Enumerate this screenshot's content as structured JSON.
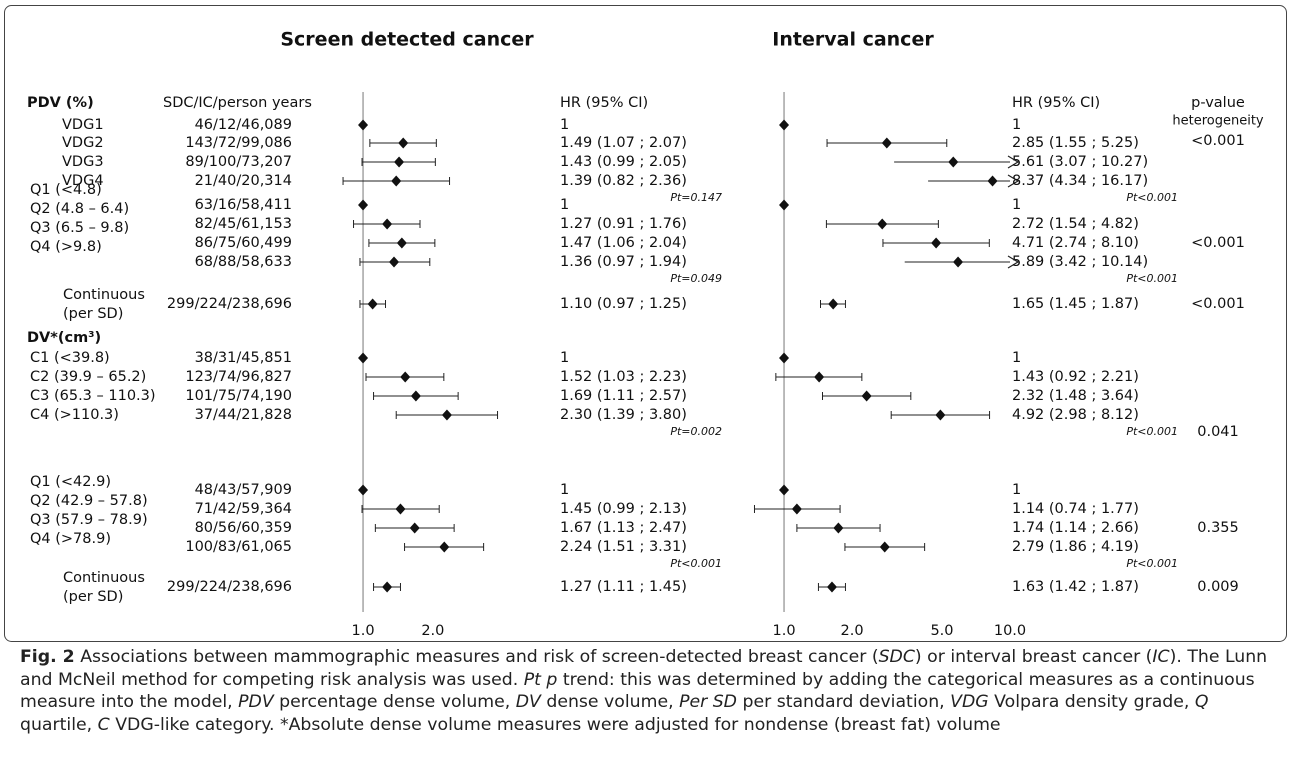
{
  "chart_data": {
    "type": "forest",
    "headers": {
      "counts": "SDC/IC/person years",
      "p": "p-value",
      "p_sub": "heterogeneity"
    },
    "panels": [
      {
        "title": "Screen detected cancer",
        "effect_header": "HR (95% CI)",
        "scale": "log",
        "xlim": [
          0.7,
          4
        ],
        "xticks": [
          {
            "value": 1,
            "label": "1.0"
          },
          {
            "value": 2,
            "label": "2.0"
          }
        ]
      },
      {
        "title": "Interval cancer",
        "effect_header": "HR (95% CI)",
        "scale": "log",
        "xlim": [
          0.6,
          10
        ],
        "xticks": [
          {
            "value": 1,
            "label": "1.0"
          },
          {
            "value": 2,
            "label": "2.0"
          },
          {
            "value": 5,
            "label": "5.0"
          },
          {
            "value": 10,
            "label": "10.0"
          }
        ]
      }
    ],
    "sections": [
      {
        "title": "PDV (%)",
        "groups": [
          {
            "rows": [
              {
                "label": "VDG1",
                "counts": "46/12/46,089",
                "estimates": [
                  {
                    "hr": 1
                  },
                  {
                    "hr": 1
                  }
                ]
              },
              {
                "label": "VDG2",
                "counts": "143/72/99,086",
                "estimates": [
                  {
                    "hr": 1.49,
                    "lower": 1.07,
                    "upper": 2.07,
                    "label": "1.49 (1.07 ; 2.07)"
                  },
                  {
                    "hr": 2.85,
                    "lower": 1.55,
                    "upper": 5.25,
                    "label": "2.85 (1.55 ; 5.25)"
                  }
                ]
              },
              {
                "label": "VDG3",
                "counts": "89/100/73,207",
                "estimates": [
                  {
                    "hr": 1.43,
                    "lower": 0.99,
                    "upper": 2.05,
                    "label": "1.43 (0.99 ; 2.05)"
                  },
                  {
                    "hr": 5.61,
                    "lower": 3.07,
                    "upper": 10.27,
                    "label": "5.61 (3.07 ; 10.27)"
                  }
                ]
              },
              {
                "label": "VDG4",
                "counts": "21/40/20,314",
                "estimates": [
                  {
                    "hr": 1.39,
                    "lower": 0.82,
                    "upper": 2.36,
                    "label": "1.39 (0.82 ; 2.36)"
                  },
                  {
                    "hr": 8.37,
                    "lower": 4.34,
                    "upper": 16.17,
                    "label": "8.37 (4.34 ; 16.17)"
                  }
                ]
              }
            ],
            "trend": [
              "Pt=0.147",
              "Pt<0.001"
            ],
            "p": "<0.001"
          },
          {
            "rows": [
              {
                "label": "Q1 (<4.8)",
                "counts": "63/16/58,411",
                "estimates": [
                  {
                    "hr": 1
                  },
                  {
                    "hr": 1
                  }
                ]
              },
              {
                "label": "Q2 (4.8 – 6.4)",
                "counts": "82/45/61,153",
                "estimates": [
                  {
                    "hr": 1.27,
                    "lower": 0.91,
                    "upper": 1.76,
                    "label": "1.27 (0.91 ; 1.76)"
                  },
                  {
                    "hr": 2.72,
                    "lower": 1.54,
                    "upper": 4.82,
                    "label": "2.72 (1.54 ; 4.82)"
                  }
                ]
              },
              {
                "label": "Q3 (6.5 – 9.8)",
                "counts": "86/75/60,499",
                "estimates": [
                  {
                    "hr": 1.47,
                    "lower": 1.06,
                    "upper": 2.04,
                    "label": "1.47 (1.06 ; 2.04)"
                  },
                  {
                    "hr": 4.71,
                    "lower": 2.74,
                    "upper": 8.1,
                    "label": "4.71 (2.74 ; 8.10)"
                  }
                ]
              },
              {
                "label": "Q4 (>9.8)",
                "counts": "68/88/58,633",
                "estimates": [
                  {
                    "hr": 1.36,
                    "lower": 0.97,
                    "upper": 1.94,
                    "label": "1.36 (0.97 ; 1.94)"
                  },
                  {
                    "hr": 5.89,
                    "lower": 3.42,
                    "upper": 10.14,
                    "label": "5.89 (3.42 ; 10.14)"
                  }
                ]
              }
            ],
            "trend": [
              "Pt=0.049",
              "Pt<0.001"
            ],
            "p": "<0.001"
          },
          {
            "rows": [
              {
                "label": "Continuous",
                "sublabel": "(per SD)",
                "counts": "299/224/238,696",
                "estimates": [
                  {
                    "hr": 1.1,
                    "lower": 0.97,
                    "upper": 1.25,
                    "label": "1.10 (0.97 ; 1.25)"
                  },
                  {
                    "hr": 1.65,
                    "lower": 1.45,
                    "upper": 1.87,
                    "label": "1.65 (1.45 ; 1.87)"
                  }
                ]
              }
            ],
            "p": "<0.001"
          }
        ]
      },
      {
        "title": "DV*(cm³)",
        "groups": [
          {
            "rows": [
              {
                "label": "C1 (<39.8)",
                "counts": "38/31/45,851",
                "estimates": [
                  {
                    "hr": 1
                  },
                  {
                    "hr": 1
                  }
                ]
              },
              {
                "label": "C2 (39.9 – 65.2)",
                "counts": "123/74/96,827",
                "estimates": [
                  {
                    "hr": 1.52,
                    "lower": 1.03,
                    "upper": 2.23,
                    "label": "1.52 (1.03 ; 2.23)"
                  },
                  {
                    "hr": 1.43,
                    "lower": 0.92,
                    "upper": 2.21,
                    "label": "1.43 (0.92 ; 2.21)"
                  }
                ]
              },
              {
                "label": "C3 (65.3 – 110.3)",
                "counts": "101/75/74,190",
                "estimates": [
                  {
                    "hr": 1.69,
                    "lower": 1.11,
                    "upper": 2.57,
                    "label": "1.69 (1.11 ; 2.57)"
                  },
                  {
                    "hr": 2.32,
                    "lower": 1.48,
                    "upper": 3.64,
                    "label": "2.32 (1.48 ; 3.64)"
                  }
                ]
              },
              {
                "label": "C4 (>110.3)",
                "counts": "37/44/21,828",
                "estimates": [
                  {
                    "hr": 2.3,
                    "lower": 1.39,
                    "upper": 3.8,
                    "label": "2.30 (1.39 ; 3.80)"
                  },
                  {
                    "hr": 4.92,
                    "lower": 2.98,
                    "upper": 8.12,
                    "label": "4.92 (2.98 ; 8.12)"
                  }
                ]
              }
            ],
            "trend": [
              "Pt=0.002",
              "Pt<0.001"
            ],
            "p": "0.041"
          },
          {
            "rows": [
              {
                "label": "Q1 (<42.9)",
                "counts": "48/43/57,909",
                "estimates": [
                  {
                    "hr": 1
                  },
                  {
                    "hr": 1
                  }
                ]
              },
              {
                "label": "Q2 (42.9 – 57.8)",
                "counts": "71/42/59,364",
                "estimates": [
                  {
                    "hr": 1.45,
                    "lower": 0.99,
                    "upper": 2.13,
                    "label": "1.45 (0.99 ; 2.13)"
                  },
                  {
                    "hr": 1.14,
                    "lower": 0.74,
                    "upper": 1.77,
                    "label": "1.14 (0.74 ; 1.77)"
                  }
                ]
              },
              {
                "label": "Q3 (57.9 – 78.9)",
                "counts": "80/56/60,359",
                "estimates": [
                  {
                    "hr": 1.67,
                    "lower": 1.13,
                    "upper": 2.47,
                    "label": "1.67 (1.13 ; 2.47)"
                  },
                  {
                    "hr": 1.74,
                    "lower": 1.14,
                    "upper": 2.66,
                    "label": "1.74 (1.14 ; 2.66)"
                  }
                ]
              },
              {
                "label": "Q4 (>78.9)",
                "counts": "100/83/61,065",
                "estimates": [
                  {
                    "hr": 2.24,
                    "lower": 1.51,
                    "upper": 3.31,
                    "label": "2.24 (1.51 ; 3.31)"
                  },
                  {
                    "hr": 2.79,
                    "lower": 1.86,
                    "upper": 4.19,
                    "label": "2.79 (1.86 ; 4.19)"
                  }
                ]
              }
            ],
            "trend": [
              "Pt<0.001",
              "Pt<0.001"
            ],
            "p": "0.355"
          },
          {
            "rows": [
              {
                "label": "Continuous",
                "sublabel": "(per SD)",
                "counts": "299/224/238,696",
                "estimates": [
                  {
                    "hr": 1.27,
                    "lower": 1.11,
                    "upper": 1.45,
                    "label": "1.27 (1.11 ; 1.45)"
                  },
                  {
                    "hr": 1.63,
                    "lower": 1.42,
                    "upper": 1.87,
                    "label": "1.63 (1.42 ; 1.87)"
                  }
                ]
              }
            ],
            "p": "0.009"
          }
        ]
      }
    ]
  },
  "caption": [
    "Fig. 2",
    " Associations between mammographic measures and risk of screen-detected breast cancer (",
    "SDC",
    ") or interval breast cancer (",
    "IC",
    "). The Lunn and McNeil method for competing risk analysis was used. ",
    "Pt p",
    " trend: this was determined by adding the categorical measures as a continuous measure into the model, ",
    "PDV",
    " percentage dense volume, ",
    "DV",
    " dense volume, ",
    "Per SD",
    " per standard deviation, ",
    "VDG",
    " Volpara density grade, ",
    "Q",
    " quartile, ",
    "C",
    " VDG-like category. *Absolute dense volume measures were adjusted for nondense (breast fat) volume"
  ]
}
